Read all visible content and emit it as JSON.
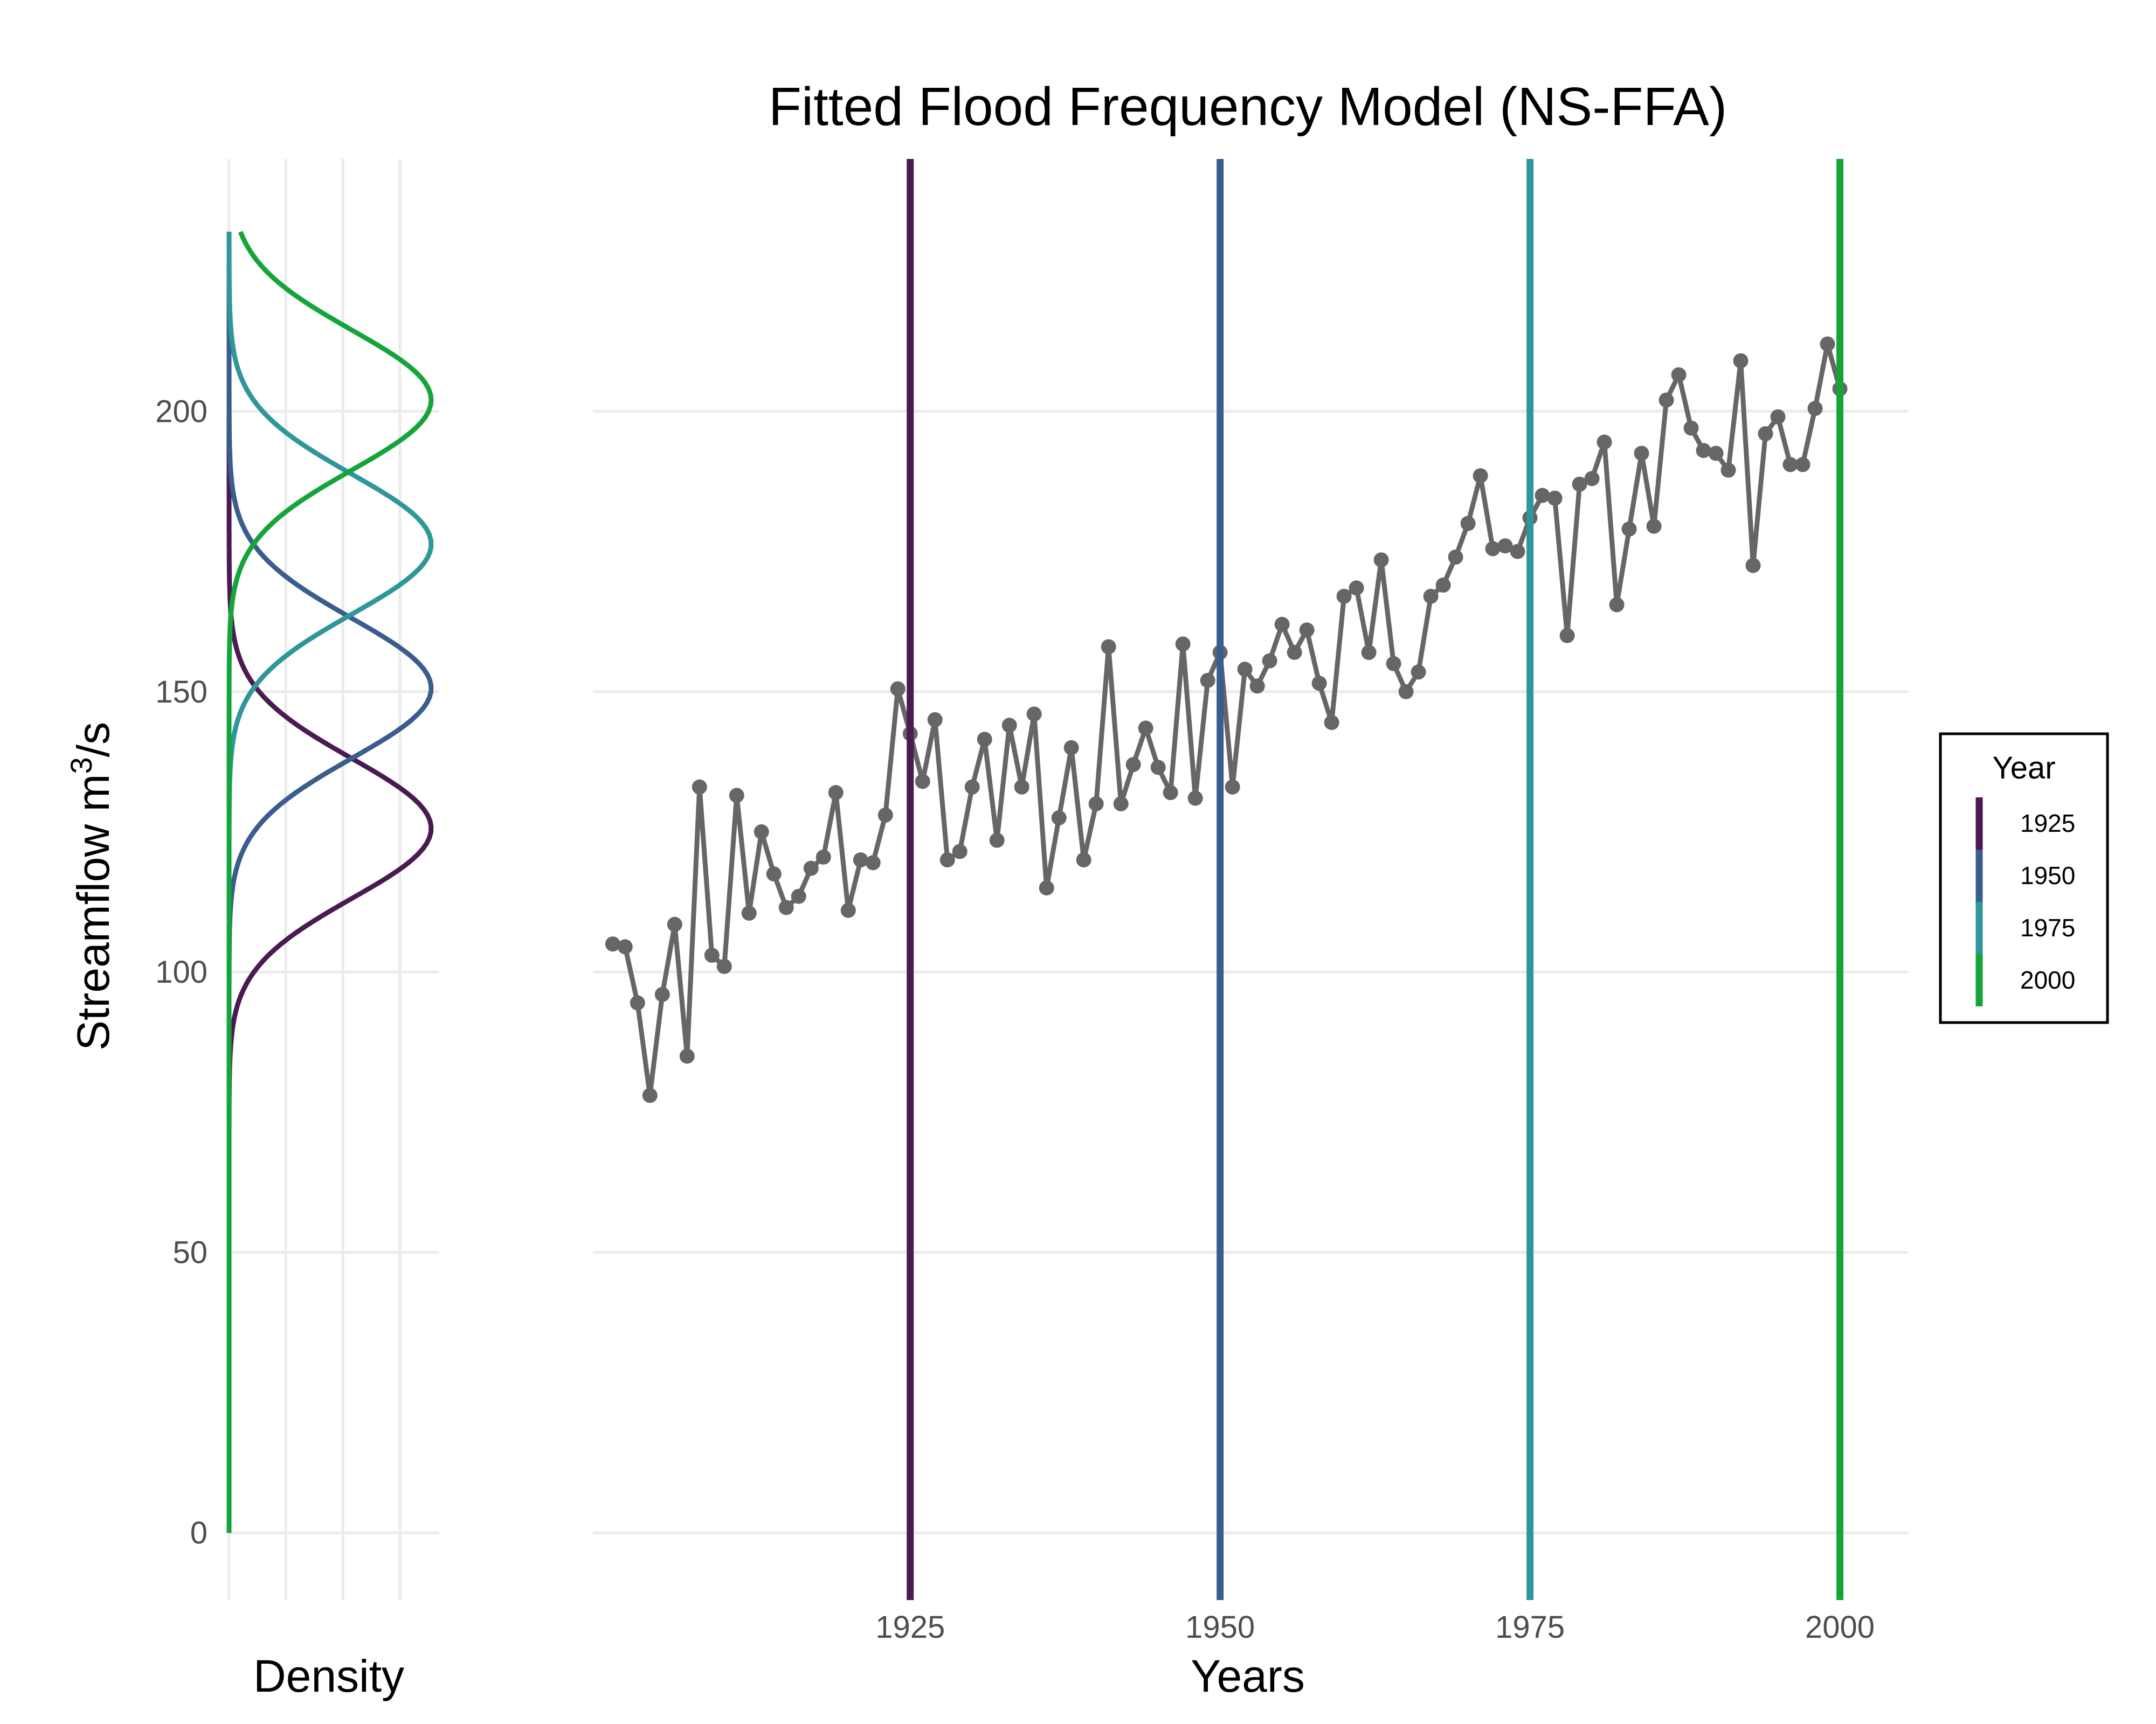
{
  "chart_data": {
    "type": "line",
    "title": "Fitted Flood Frequency Model (NS-FFA)",
    "ylabel": "Streamflow m",
    "ylabel_superscript": "3",
    "ylabel_suffix": "/s",
    "xlabel": "Years",
    "density_xlabel": "Density",
    "ylim": [
      -12,
      245
    ],
    "xlim": [
      1899.4,
      2005.5
    ],
    "y_ticks": [
      0,
      50,
      100,
      150,
      200
    ],
    "x_ticks": [
      1925,
      1950,
      1975,
      2000
    ],
    "grid": true,
    "observed_series": {
      "color": "#666666",
      "x": [
        1901,
        1902,
        1903,
        1904,
        1905,
        1906,
        1907,
        1908,
        1909,
        1910,
        1911,
        1912,
        1913,
        1914,
        1915,
        1916,
        1917,
        1918,
        1919,
        1920,
        1921,
        1922,
        1923,
        1924,
        1925,
        1926,
        1927,
        1928,
        1929,
        1930,
        1931,
        1932,
        1933,
        1934,
        1935,
        1936,
        1937,
        1938,
        1939,
        1940,
        1941,
        1942,
        1943,
        1944,
        1945,
        1946,
        1947,
        1948,
        1949,
        1950,
        1951,
        1952,
        1953,
        1954,
        1955,
        1956,
        1957,
        1958,
        1959,
        1960,
        1961,
        1962,
        1963,
        1964,
        1965,
        1966,
        1967,
        1968,
        1969,
        1970,
        1971,
        1972,
        1973,
        1974,
        1975,
        1976,
        1977,
        1978,
        1979,
        1980,
        1981,
        1982,
        1983,
        1984,
        1985,
        1986,
        1987,
        1988,
        1989,
        1990,
        1991,
        1992,
        1993,
        1994,
        1995,
        1996,
        1997,
        1998,
        1999,
        2000
      ],
      "y": [
        105,
        104.5,
        94.5,
        78,
        96,
        108.5,
        85,
        133,
        103,
        101,
        131.5,
        110.5,
        125,
        117.5,
        111.5,
        113.5,
        118.5,
        120.5,
        132,
        111,
        120,
        119.5,
        128,
        150.5,
        142.5,
        134,
        145,
        120,
        121.5,
        133,
        141.5,
        123.5,
        144,
        133,
        146,
        115,
        127.5,
        140,
        120,
        130,
        158,
        130,
        137,
        143.5,
        136.5,
        132,
        158.5,
        131,
        152,
        157,
        133,
        154,
        151,
        155.5,
        162,
        157,
        161,
        151.5,
        144.5,
        167,
        168.5,
        157,
        173.5,
        155,
        150,
        153.5,
        167,
        169,
        174,
        180,
        188.5,
        175.5,
        176,
        175,
        181,
        185,
        184.5,
        160,
        187,
        188,
        194.5,
        165.5,
        179,
        192.5,
        179.5,
        202,
        206.5,
        197,
        193,
        192.5,
        189.5,
        209,
        172.5,
        196,
        199,
        190.5,
        190.5,
        200.5,
        212,
        204
      ]
    },
    "fitted_years": [
      {
        "year": "1925",
        "x": 1925,
        "color": "#4b1a52",
        "density_mean": 125.6,
        "density_sd": 12.5
      },
      {
        "year": "1950",
        "x": 1950,
        "color": "#395d8c",
        "density_mean": 150.6,
        "density_sd": 12.5
      },
      {
        "year": "1975",
        "x": 1975,
        "color": "#2f9699",
        "density_mean": 176.3,
        "density_sd": 12.5
      },
      {
        "year": "2000",
        "x": 2000,
        "color": "#14a53a",
        "density_mean": 202.0,
        "density_sd": 12.5
      }
    ],
    "legend": {
      "title": "Year",
      "placement": "right"
    }
  }
}
